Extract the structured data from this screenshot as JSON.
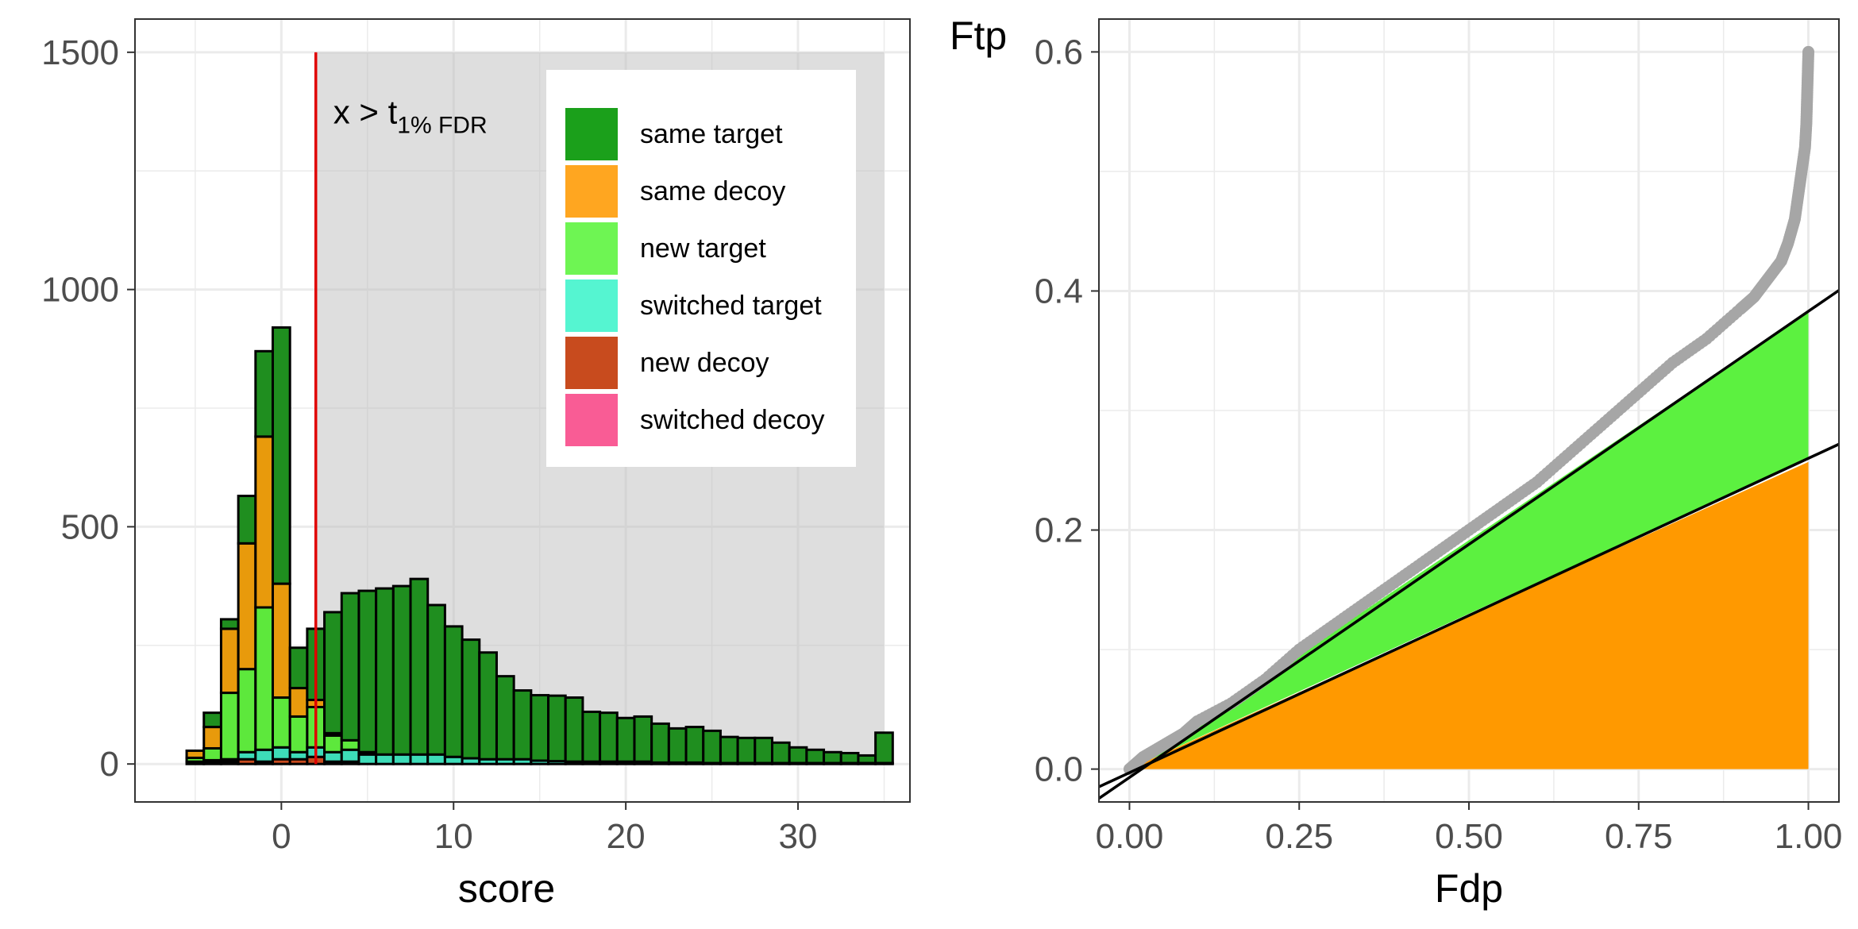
{
  "chart_data": [
    {
      "type": "bar",
      "stacked": true,
      "xlabel": "score",
      "ylabel": "",
      "xlim": [
        -8.5,
        36.5
      ],
      "ylim": [
        -80,
        1570
      ],
      "xticks": [
        0,
        10,
        20,
        30
      ],
      "yticks": [
        0,
        500,
        1000,
        1500
      ],
      "xtick_labels": [
        "0",
        "10",
        "20",
        "30"
      ],
      "ytick_labels": [
        "0",
        "500",
        "1000",
        "1500"
      ],
      "grid": true,
      "bin_width": 1,
      "threshold": 2,
      "shaded_region": {
        "x_from": 2,
        "x_to": 35,
        "y_from": 0,
        "y_to": 1500
      },
      "annotation": {
        "base": "x > t",
        "subscript": "1% FDR"
      },
      "legend_position": "top-right",
      "legend": [
        {
          "name": "same target",
          "color": "#1ba01b"
        },
        {
          "name": "same decoy",
          "color": "#ffa620"
        },
        {
          "name": "new target",
          "color": "#6ef553"
        },
        {
          "name": "switched target",
          "color": "#55f5d1"
        },
        {
          "name": "new decoy",
          "color": "#c84b1e"
        },
        {
          "name": "switched decoy",
          "color": "#f95c95"
        }
      ],
      "bar_colors": {
        "same_target": "#1f8e1f",
        "same_decoy": "#e89a0c",
        "new_target": "#5de83c",
        "switched_target": "#3ddcb8",
        "new_decoy": "#c84b1e",
        "switched_decoy": "#f95c95"
      },
      "bins": [
        {
          "x": -5,
          "same_target": 0,
          "same_decoy": 15,
          "new_target": 8,
          "switched_target": 0,
          "new_decoy": 5
        },
        {
          "x": -4,
          "same_target": 30,
          "same_decoy": 45,
          "new_target": 25,
          "switched_target": 3,
          "new_decoy": 5
        },
        {
          "x": -3,
          "same_target": 20,
          "same_decoy": 135,
          "new_target": 140,
          "switched_target": 5,
          "new_decoy": 5
        },
        {
          "x": -2,
          "same_target": 100,
          "same_decoy": 265,
          "new_target": 175,
          "switched_target": 15,
          "new_decoy": 10
        },
        {
          "x": -1,
          "same_target": 180,
          "same_decoy": 360,
          "new_target": 300,
          "switched_target": 25,
          "new_decoy": 5
        },
        {
          "x": 0,
          "same_target": 540,
          "same_decoy": 240,
          "new_target": 105,
          "switched_target": 25,
          "new_decoy": 10
        },
        {
          "x": 1,
          "same_target": 85,
          "same_decoy": 60,
          "new_target": 75,
          "switched_target": 15,
          "new_decoy": 10
        },
        {
          "x": 2,
          "same_target": 150,
          "same_decoy": 15,
          "new_target": 85,
          "switched_target": 20,
          "new_decoy": 15
        },
        {
          "x": 3,
          "same_target": 255,
          "same_decoy": 5,
          "new_target": 35,
          "switched_target": 20,
          "new_decoy": 5
        },
        {
          "x": 4,
          "same_target": 310,
          "same_decoy": 0,
          "new_target": 20,
          "switched_target": 25,
          "new_decoy": 5
        },
        {
          "x": 5,
          "same_target": 340,
          "same_decoy": 0,
          "new_target": 5,
          "switched_target": 20,
          "new_decoy": 0
        },
        {
          "x": 6,
          "same_target": 350,
          "same_decoy": 0,
          "new_target": 0,
          "switched_target": 20,
          "new_decoy": 0
        },
        {
          "x": 7,
          "same_target": 355,
          "same_decoy": 0,
          "new_target": 0,
          "switched_target": 20,
          "new_decoy": 0
        },
        {
          "x": 8,
          "same_target": 370,
          "same_decoy": 0,
          "new_target": 0,
          "switched_target": 20,
          "new_decoy": 0
        },
        {
          "x": 9,
          "same_target": 315,
          "same_decoy": 0,
          "new_target": 0,
          "switched_target": 20,
          "new_decoy": 0
        },
        {
          "x": 10,
          "same_target": 275,
          "same_decoy": 0,
          "new_target": 0,
          "switched_target": 15,
          "new_decoy": 0
        },
        {
          "x": 11,
          "same_target": 250,
          "same_decoy": 0,
          "new_target": 0,
          "switched_target": 12,
          "new_decoy": 0
        },
        {
          "x": 12,
          "same_target": 225,
          "same_decoy": 0,
          "new_target": 0,
          "switched_target": 10,
          "new_decoy": 0
        },
        {
          "x": 13,
          "same_target": 175,
          "same_decoy": 0,
          "new_target": 0,
          "switched_target": 10,
          "new_decoy": 0
        },
        {
          "x": 14,
          "same_target": 145,
          "same_decoy": 0,
          "new_target": 0,
          "switched_target": 10,
          "new_decoy": 0
        },
        {
          "x": 15,
          "same_target": 138,
          "same_decoy": 0,
          "new_target": 0,
          "switched_target": 7,
          "new_decoy": 0
        },
        {
          "x": 16,
          "same_target": 138,
          "same_decoy": 0,
          "new_target": 0,
          "switched_target": 6,
          "new_decoy": 0
        },
        {
          "x": 17,
          "same_target": 135,
          "same_decoy": 0,
          "new_target": 0,
          "switched_target": 5,
          "new_decoy": 0
        },
        {
          "x": 18,
          "same_target": 105,
          "same_decoy": 0,
          "new_target": 0,
          "switched_target": 5,
          "new_decoy": 0
        },
        {
          "x": 19,
          "same_target": 103,
          "same_decoy": 0,
          "new_target": 0,
          "switched_target": 5,
          "new_decoy": 0
        },
        {
          "x": 20,
          "same_target": 92,
          "same_decoy": 0,
          "new_target": 0,
          "switched_target": 5,
          "new_decoy": 0
        },
        {
          "x": 21,
          "same_target": 95,
          "same_decoy": 0,
          "new_target": 0,
          "switched_target": 5,
          "new_decoy": 0
        },
        {
          "x": 22,
          "same_target": 82,
          "same_decoy": 0,
          "new_target": 0,
          "switched_target": 3,
          "new_decoy": 0
        },
        {
          "x": 23,
          "same_target": 72,
          "same_decoy": 0,
          "new_target": 0,
          "switched_target": 3,
          "new_decoy": 0
        },
        {
          "x": 24,
          "same_target": 75,
          "same_decoy": 0,
          "new_target": 0,
          "switched_target": 3,
          "new_decoy": 0
        },
        {
          "x": 25,
          "same_target": 68,
          "same_decoy": 0,
          "new_target": 0,
          "switched_target": 2,
          "new_decoy": 0
        },
        {
          "x": 26,
          "same_target": 55,
          "same_decoy": 0,
          "new_target": 0,
          "switched_target": 2,
          "new_decoy": 0
        },
        {
          "x": 27,
          "same_target": 53,
          "same_decoy": 0,
          "new_target": 0,
          "switched_target": 2,
          "new_decoy": 0
        },
        {
          "x": 28,
          "same_target": 53,
          "same_decoy": 0,
          "new_target": 0,
          "switched_target": 2,
          "new_decoy": 0
        },
        {
          "x": 29,
          "same_target": 43,
          "same_decoy": 0,
          "new_target": 0,
          "switched_target": 2,
          "new_decoy": 0
        },
        {
          "x": 30,
          "same_target": 33,
          "same_decoy": 0,
          "new_target": 0,
          "switched_target": 2,
          "new_decoy": 0
        },
        {
          "x": 31,
          "same_target": 28,
          "same_decoy": 0,
          "new_target": 0,
          "switched_target": 2,
          "new_decoy": 0
        },
        {
          "x": 32,
          "same_target": 23,
          "same_decoy": 0,
          "new_target": 0,
          "switched_target": 2,
          "new_decoy": 0
        },
        {
          "x": 33,
          "same_target": 21,
          "same_decoy": 0,
          "new_target": 0,
          "switched_target": 2,
          "new_decoy": 0
        },
        {
          "x": 34,
          "same_target": 16,
          "same_decoy": 0,
          "new_target": 0,
          "switched_target": 2,
          "new_decoy": 0
        },
        {
          "x": 35,
          "same_target": 64,
          "same_decoy": 0,
          "new_target": 0,
          "switched_target": 2,
          "new_decoy": 0
        }
      ]
    },
    {
      "type": "area",
      "xlabel": "Fdp",
      "ylabel": "Ftp",
      "xlim": [
        -0.045,
        1.045
      ],
      "ylim": [
        -0.0275,
        0.6275
      ],
      "xticks": [
        0,
        0.25,
        0.5,
        0.75,
        1
      ],
      "yticks": [
        0,
        0.2,
        0.4,
        0.6
      ],
      "xtick_labels": [
        "0.00",
        "0.25",
        "0.50",
        "0.75",
        "1.00"
      ],
      "ytick_labels": [
        "0.0",
        "0.2",
        "0.4",
        "0.6"
      ],
      "grid": true,
      "areas": [
        {
          "fill": "#5cf140",
          "x": [
            0,
            1
          ],
          "lower": [
            0,
            0.26
          ],
          "upper": [
            0,
            0.383
          ]
        },
        {
          "fill": "#ff9900",
          "x": [
            0,
            1
          ],
          "lower": [
            0,
            0
          ],
          "upper": [
            0,
            0.257
          ]
        }
      ],
      "lines": [
        {
          "color": "#000000",
          "intercept": -0.007,
          "slope": 0.39
        },
        {
          "color": "#000000",
          "intercept": -0.003,
          "slope": 0.263
        }
      ],
      "points": {
        "color": "#a6a6a6",
        "x": [
          0,
          0.02,
          0.05,
          0.08,
          0.1,
          0.15,
          0.2,
          0.25,
          0.3,
          0.35,
          0.4,
          0.45,
          0.5,
          0.55,
          0.6,
          0.65,
          0.7,
          0.75,
          0.8,
          0.85,
          0.9,
          0.92,
          0.94,
          0.96,
          0.97,
          0.98,
          0.985,
          0.99,
          0.995,
          0.997,
          0.998,
          0.999,
          1
        ],
        "y": [
          0,
          0.01,
          0.02,
          0.03,
          0.04,
          0.055,
          0.075,
          0.1,
          0.12,
          0.14,
          0.16,
          0.18,
          0.2,
          0.22,
          0.24,
          0.265,
          0.29,
          0.315,
          0.34,
          0.36,
          0.385,
          0.395,
          0.41,
          0.425,
          0.44,
          0.46,
          0.48,
          0.5,
          0.52,
          0.54,
          0.56,
          0.58,
          0.6
        ]
      }
    }
  ]
}
